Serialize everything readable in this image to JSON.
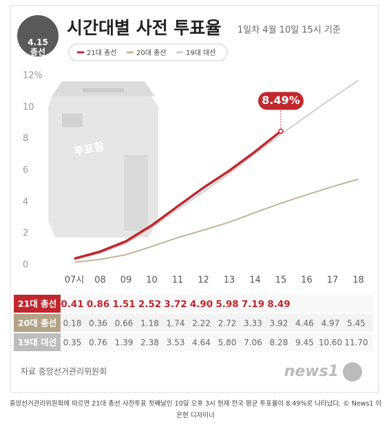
{
  "chart_data": {
    "type": "line",
    "title": "시간대별 사전 투표율",
    "subtitle": "1일차 4월 10일 15시 기준",
    "badge": [
      "4.15",
      "총선"
    ],
    "illustration_label": "투표함",
    "categories": [
      "07시",
      "08",
      "09",
      "10",
      "11",
      "12",
      "13",
      "14",
      "15",
      "16",
      "17",
      "18"
    ],
    "series": [
      {
        "name": "21대 총선",
        "color": "#c1272d",
        "values": [
          0.41,
          0.86,
          1.51,
          2.52,
          3.72,
          4.9,
          5.98,
          7.19,
          8.49,
          null,
          null,
          null
        ],
        "value_labels": [
          "0.41",
          "0.86",
          "1.51",
          "2.52",
          "3.72",
          "4.90",
          "5.98",
          "7.19",
          "8.49",
          null,
          null,
          null
        ]
      },
      {
        "name": "20대 총선",
        "color": "#c4b29a",
        "values": [
          0.18,
          0.36,
          0.66,
          1.18,
          1.74,
          2.22,
          2.72,
          3.33,
          3.92,
          4.46,
          4.97,
          5.45
        ],
        "value_labels": [
          "0.18",
          "0.36",
          "0.66",
          "1.18",
          "1.74",
          "2.22",
          "2.72",
          "3.33",
          "3.92",
          "4.46",
          "4.97",
          "5.45"
        ]
      },
      {
        "name": "19대 대선",
        "color": "#cfcfcf",
        "values": [
          0.35,
          0.76,
          1.39,
          2.38,
          3.53,
          4.64,
          5.8,
          7.06,
          8.28,
          9.45,
          10.6,
          11.7
        ],
        "value_labels": [
          "0.35",
          "0.76",
          "1.39",
          "2.38",
          "3.53",
          "4.64",
          "5.80",
          "7.06",
          "8.28",
          "9.45",
          "10.60",
          "11.70"
        ]
      }
    ],
    "ylim": [
      0,
      12
    ],
    "yticks": [
      0,
      2,
      4,
      6,
      8,
      10,
      {
        "value": 12,
        "label": "12%"
      }
    ],
    "grid": false,
    "annotation": "8.49%",
    "source": "자료 중앙선거관리위원회",
    "logo": "news1",
    "caption": "중앙선거관리위원회에 따르면 21대 총선 사전투표 첫째날인 10일 오후 3시 현재 전국 평균 투표율이 8.49%로 나타났다. © News1 이은현 디자이너"
  }
}
